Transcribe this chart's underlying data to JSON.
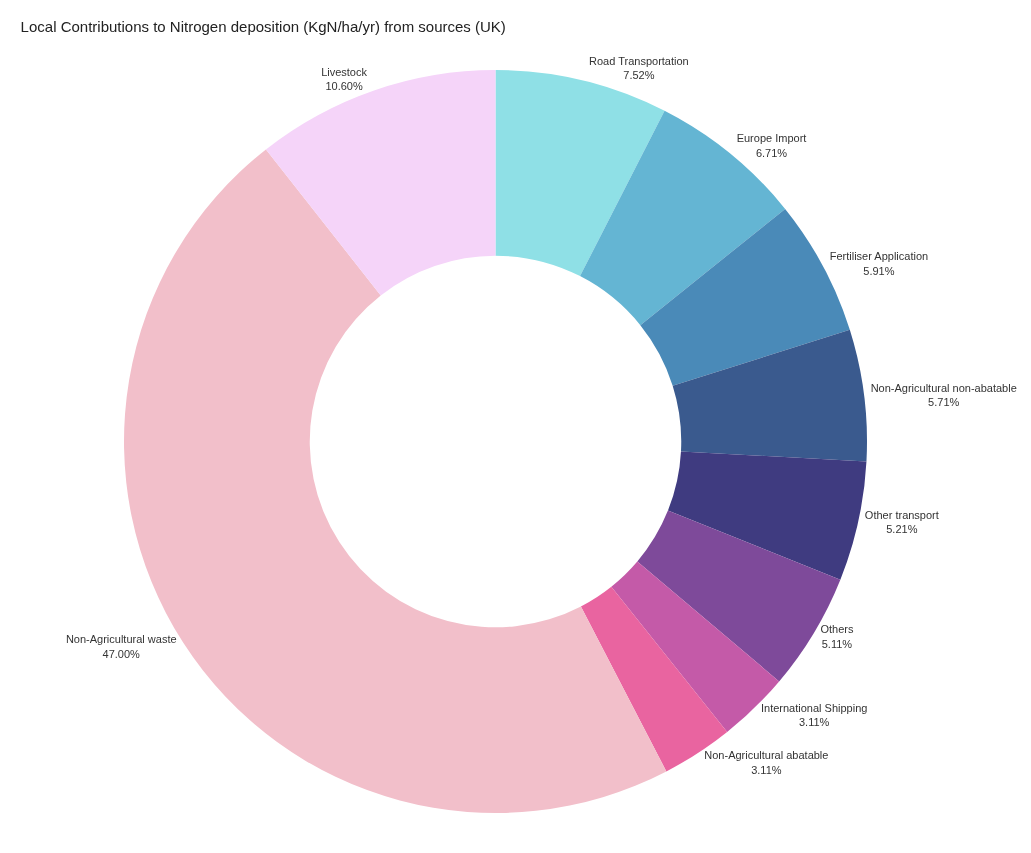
{
  "chart_data": {
    "type": "donut",
    "title": "Local Contributions to Nitrogen deposition (KgN/ha/yr) from sources (UK)",
    "categories": [
      "Road Transportation",
      "Europe Import",
      "Fertiliser Application",
      "Non-Agricultural non-abatable",
      "Other transport",
      "Others",
      "International Shipping",
      "Non-Agricultural abatable",
      "Non-Agricultural waste",
      "Livestock"
    ],
    "values": [
      7.52,
      6.71,
      5.91,
      5.71,
      5.21,
      5.11,
      3.11,
      3.11,
      47.0,
      10.6
    ],
    "value_labels": [
      "7.52%",
      "6.71%",
      "5.91%",
      "5.71%",
      "5.21%",
      "5.11%",
      "3.11%",
      "3.11%",
      "47.00%",
      "10.60%"
    ],
    "colors": [
      "#8fe0e6",
      "#64b5d3",
      "#4a8ab8",
      "#3a5a8e",
      "#3f3b80",
      "#7e4a9a",
      "#c45aa8",
      "#e964a0",
      "#f2bfca",
      "#f5d4f9"
    ],
    "legend": false
  }
}
